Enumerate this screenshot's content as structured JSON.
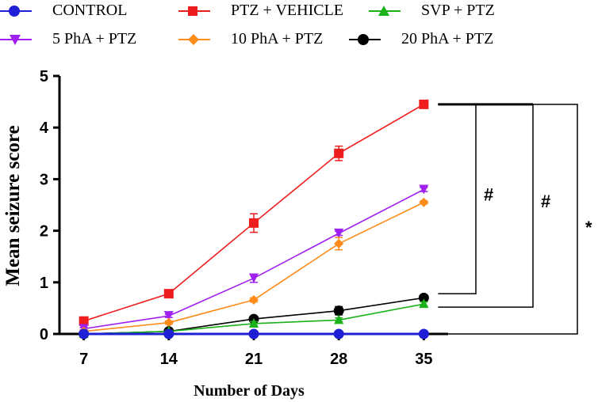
{
  "chart_data": {
    "type": "line",
    "xlabel": "Number of Days",
    "ylabel": "Mean seizure score",
    "x": [
      7,
      14,
      21,
      28,
      35
    ],
    "ylim": [
      0,
      5
    ],
    "yticks": [
      0,
      1,
      2,
      3,
      4,
      5
    ],
    "series": [
      {
        "name": "CONTROL",
        "color": "#1f1fd6",
        "marker": "circle",
        "values": [
          0,
          0,
          0,
          0,
          0
        ],
        "errors": [
          0,
          0,
          0,
          0,
          0
        ]
      },
      {
        "name": "PTZ + VEHICLE",
        "color": "#ee1c1c",
        "marker": "square",
        "values": [
          0.25,
          0.78,
          2.15,
          3.5,
          4.45
        ],
        "errors": [
          0.04,
          0.04,
          0.18,
          0.14,
          0.04
        ]
      },
      {
        "name": "SVP + PTZ",
        "color": "#19b219",
        "marker": "triangle-up",
        "values": [
          0.0,
          0.05,
          0.2,
          0.27,
          0.58
        ],
        "errors": [
          0,
          0.02,
          0.04,
          0.04,
          0.04
        ]
      },
      {
        "name": "5 PhA + PTZ",
        "color": "#a020f0",
        "marker": "triangle-down",
        "values": [
          0.1,
          0.35,
          1.08,
          1.95,
          2.8
        ],
        "errors": [
          0.02,
          0.03,
          0.08,
          0.04,
          0.04
        ]
      },
      {
        "name": "10 PhA + PTZ",
        "color": "#ff8c1a",
        "marker": "diamond",
        "values": [
          0.05,
          0.22,
          0.66,
          1.75,
          2.55
        ],
        "errors": [
          0.02,
          0.03,
          0.04,
          0.12,
          0.03
        ]
      },
      {
        "name": "20 PhA + PTZ",
        "color": "#000000",
        "marker": "circle",
        "values": [
          0.0,
          0.05,
          0.29,
          0.45,
          0.7
        ],
        "errors": [
          0,
          0.02,
          0.04,
          0.08,
          0.04
        ]
      }
    ],
    "significance": [
      {
        "label": "#",
        "from": 0.78,
        "to": 4.45
      },
      {
        "label": "#",
        "from": 0.52,
        "to": 4.45
      },
      {
        "label": "*",
        "from": 0.0,
        "to": 4.45
      }
    ]
  }
}
